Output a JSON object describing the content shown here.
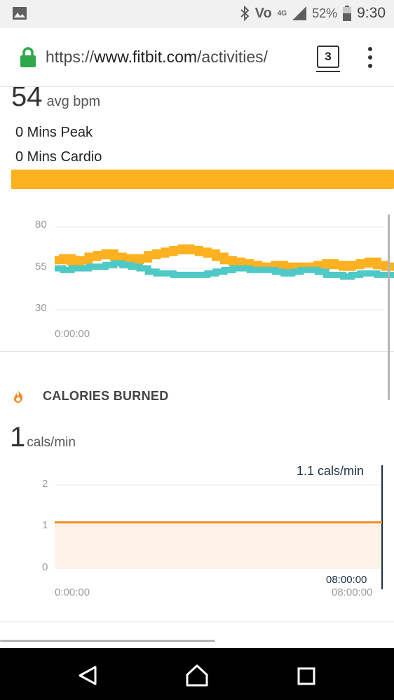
{
  "status_bar": {
    "carrier": "Vo",
    "network": "4G",
    "battery": "52%",
    "time": "9:30",
    "icons": [
      "image-icon",
      "bluetooth-icon",
      "volte-icon",
      "signal-icon",
      "battery-icon"
    ]
  },
  "browser": {
    "url_scheme": "https://",
    "url_host": "www.fitbit.com",
    "url_path": "/activities/",
    "tab_count": "3"
  },
  "heart_rate": {
    "avg_value": "54",
    "avg_unit": "avg bpm",
    "zones": [
      "0 Mins Peak",
      "0 Mins Cardio"
    ],
    "zone_bar_color": "#fbb120"
  },
  "chart_data": [
    {
      "type": "area",
      "y_ticks": [
        "80",
        "55",
        "30"
      ],
      "x_start_label": "0:00:00",
      "ylim": [
        30,
        80
      ],
      "series": [
        {
          "color": "#fbb120",
          "values": [
            60,
            61,
            59,
            60,
            62,
            63,
            64,
            62,
            61,
            60,
            61,
            63,
            64,
            65,
            66,
            67,
            66,
            65,
            64,
            62,
            60,
            59,
            58,
            57,
            56,
            56,
            57,
            56,
            56,
            55,
            56,
            57,
            58,
            57,
            56,
            57,
            58,
            59,
            57,
            56
          ]
        },
        {
          "color": "#4ec9c5",
          "values": [
            55,
            54,
            55,
            55,
            56,
            56,
            57,
            58,
            57,
            56,
            55,
            53,
            52,
            52,
            51,
            51,
            51,
            51,
            52,
            53,
            54,
            55,
            55,
            54,
            54,
            54,
            53,
            52,
            53,
            54,
            54,
            53,
            51,
            51,
            50,
            51,
            52,
            52,
            51,
            51
          ]
        }
      ]
    },
    {
      "type": "area",
      "y_ticks": [
        "2",
        "1",
        "0"
      ],
      "x_labels": [
        "0:00:00",
        "08:00:00"
      ],
      "ylim": [
        0,
        2
      ],
      "values": [
        1.1,
        1.1
      ],
      "tooltip_value": "1.1 cals/min",
      "tooltip_time": "08:00:00",
      "line_color": "#f48a21",
      "fill_color": "#fff3e7"
    }
  ],
  "calories": {
    "section_title": "CALORIES BURNED",
    "value": "1",
    "unit": "cals/min"
  }
}
